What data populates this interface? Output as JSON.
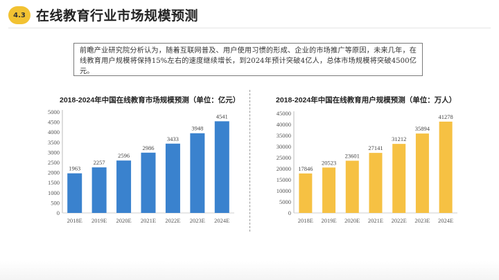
{
  "header": {
    "section_number": "4.3",
    "title": "在线教育行业市场规模预测"
  },
  "summary": {
    "text": "前瞻产业研究院分析认为，随着互联网普及、用户使用习惯的形成、企业的市场推广等原因，未来几年，在线教育用户规模将保持15%左右的速度继续增长，到2024年预计突破4亿人，总体市场规模将突破4500亿元。"
  },
  "colors": {
    "accent": "#f2c232",
    "left_bar": "#3a82ce",
    "right_bar": "#f6c143"
  },
  "chart_data": [
    {
      "type": "bar",
      "title": "2018-2024年中国在线教育市场规模预测（单位：亿元）",
      "categories": [
        "2018E",
        "2019E",
        "2020E",
        "2021E",
        "2022E",
        "2023E",
        "2024E"
      ],
      "values": [
        1963,
        2257,
        2596,
        2986,
        3433,
        3948,
        4541
      ],
      "yticks": [
        0,
        500,
        1000,
        1500,
        2000,
        2500,
        3000,
        3500,
        4000,
        4500,
        5000
      ],
      "ylim": [
        0,
        5000
      ],
      "xlabel": "",
      "ylabel": "",
      "color": "#3a82ce",
      "grid": false
    },
    {
      "type": "bar",
      "title": "2018-2024年中国在线教育用户规模预测（单位：万人）",
      "categories": [
        "2018E",
        "2019E",
        "2020E",
        "2021E",
        "2022E",
        "2023E",
        "2024E"
      ],
      "values": [
        17846,
        20523,
        23601,
        27141,
        31212,
        35894,
        41278
      ],
      "yticks": [
        0,
        5000,
        10000,
        15000,
        20000,
        25000,
        30000,
        35000,
        40000,
        45000
      ],
      "ylim": [
        0,
        45000
      ],
      "xlabel": "",
      "ylabel": "",
      "color": "#f6c143",
      "grid": false
    }
  ]
}
